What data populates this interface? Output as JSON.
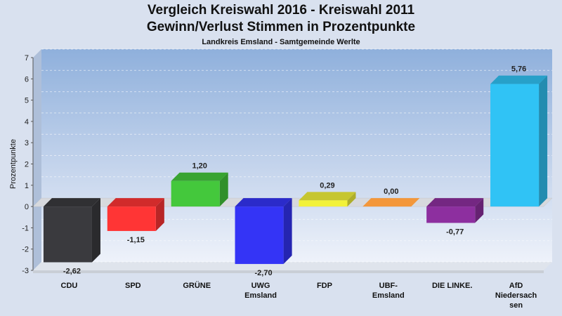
{
  "chart_data": {
    "type": "bar",
    "title": "Vergleich Kreiswahl 2016 - Kreiswahl 2011",
    "title_line2": "Gewinn/Verlust Stimmen in Prozentpunkte",
    "subtitle": "Landkreis Emsland - Samtgemeinde Werlte",
    "xlabel": "",
    "ylabel": "Prozentpunkte",
    "ylim": [
      -3,
      7
    ],
    "yticks": [
      "-3",
      "-2",
      "-1",
      "0",
      "1",
      "2",
      "3",
      "4",
      "5",
      "6",
      "7"
    ],
    "grid": true,
    "categories": [
      [
        "CDU"
      ],
      [
        "SPD"
      ],
      [
        "GRÜNE"
      ],
      [
        "UWG",
        "Emsland"
      ],
      [
        "FDP"
      ],
      [
        "UBF-",
        "Emsland"
      ],
      [
        "DIE LINKE."
      ],
      [
        "AfD",
        "Niedersach",
        "sen"
      ]
    ],
    "values": [
      -2.62,
      -1.15,
      1.2,
      -2.7,
      0.29,
      0.0,
      -0.77,
      5.76
    ],
    "value_labels": [
      "-2,62",
      "-1,15",
      "1,20",
      "-2,70",
      "0,29",
      "0,00",
      "-0,77",
      "5,76"
    ],
    "colors": [
      "#3a3a3e",
      "#ff3535",
      "#44c83c",
      "#3434f6",
      "#f2f23a",
      "#f3973a",
      "#8d2f9f",
      "#30c3f5"
    ]
  }
}
